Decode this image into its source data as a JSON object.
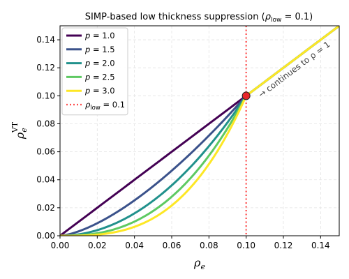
{
  "chart_data": {
    "type": "line",
    "title": "SIMP-based low thickness suppression (ρ_low = 0.1)",
    "title_parts": {
      "main": "SIMP-based low thickness suppression (",
      "rho": "ρ",
      "sub": "low",
      "rest": " = 0.1)"
    },
    "xlabel": {
      "base": "ρ",
      "sub": "e"
    },
    "ylabel": {
      "base": "ρ",
      "sub": "e",
      "sup": "VT"
    },
    "xlim": [
      0,
      0.15
    ],
    "ylim": [
      0,
      0.15
    ],
    "xticks": [
      "0.00",
      "0.02",
      "0.04",
      "0.06",
      "0.08",
      "0.10",
      "0.12",
      "0.14"
    ],
    "yticks": [
      "0.00",
      "0.02",
      "0.04",
      "0.06",
      "0.08",
      "0.10",
      "0.12",
      "0.14"
    ],
    "grid": true,
    "legend_placement": "top-left",
    "rho_low": 0.1,
    "series": [
      {
        "name": "p = 1.0",
        "label_var": "p",
        "label_val": " = 1.0",
        "p": 1.0,
        "color": "#440154"
      },
      {
        "name": "p = 1.5",
        "label_var": "p",
        "label_val": " = 1.5",
        "p": 1.5,
        "color": "#3b528b"
      },
      {
        "name": "p = 2.0",
        "label_var": "p",
        "label_val": " = 2.0",
        "p": 2.0,
        "color": "#21918c"
      },
      {
        "name": "p = 2.5",
        "label_var": "p",
        "label_val": " = 2.5",
        "p": 2.5,
        "color": "#5ec962"
      },
      {
        "name": "p = 3.0",
        "label_var": "p",
        "label_val": " = 3.0",
        "p": 3.0,
        "color": "#fde725"
      }
    ],
    "vline": {
      "x": 0.1,
      "name": "ρ_low = 0.1",
      "label_var": "ρ",
      "label_sub": "low",
      "label_val": " = 0.1",
      "color": "#ff4d4d",
      "style": "dotted"
    },
    "marker": {
      "x": 0.1,
      "y": 0.1,
      "color": "#e8262a"
    },
    "annotation": {
      "text": "→ continues to ρ = 1",
      "x": 0.108,
      "y": 0.0985
    }
  }
}
